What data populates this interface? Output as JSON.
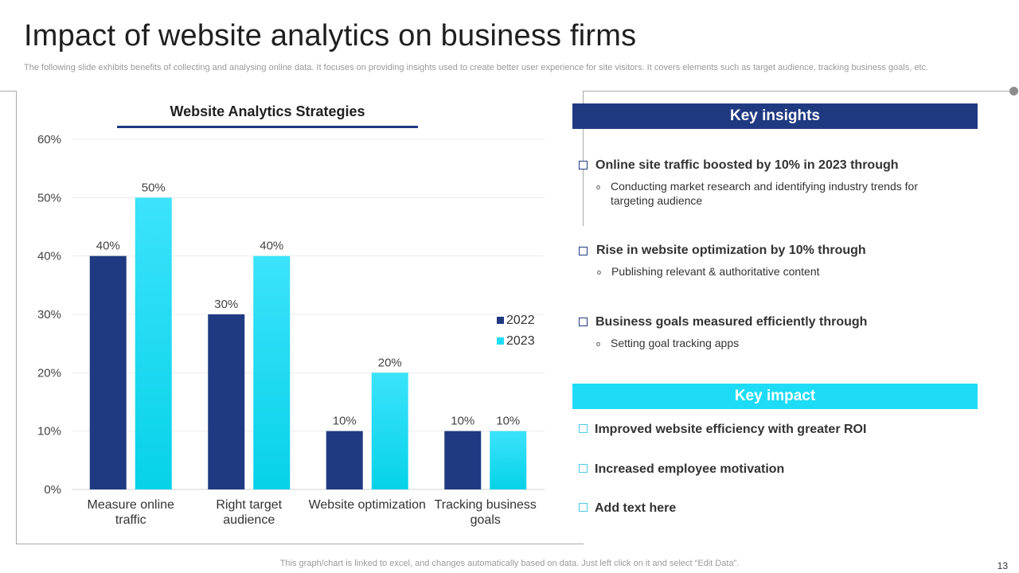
{
  "slide": {
    "title": "Impact of website analytics on business firms",
    "subtitle": "The following slide exhibits benefits of collecting and analysing online data. It focuses on providing insights used to create better user experience for site visitors. It covers elements such as target audience, tracking business goals, etc.",
    "footnote": "This graph/chart is linked to excel,  and changes automatically based on data. Just left click on it and select “Edit Data”.",
    "page_number": "13"
  },
  "chart_data": {
    "type": "bar",
    "title": "Website Analytics Strategies",
    "categories": [
      [
        "Measure online",
        "traffic"
      ],
      [
        "Right target",
        "audience"
      ],
      [
        "Website optimization"
      ],
      [
        "Tracking business",
        "goals"
      ]
    ],
    "series": [
      {
        "name": "2022",
        "values": [
          40,
          30,
          10,
          10
        ],
        "color": "#203a82"
      },
      {
        "name": "2023",
        "values": [
          50,
          40,
          20,
          10
        ],
        "color": "#1fdcf6"
      }
    ],
    "value_suffix": "%",
    "ylim": [
      0,
      60
    ],
    "yticks": [
      0,
      10,
      20,
      30,
      40,
      50,
      60
    ],
    "grid": true,
    "legend_position": "right"
  },
  "key_insights": {
    "header": "Key insights",
    "items": [
      {
        "title": "Online site traffic boosted by 10% in 2023 through",
        "bullet": "o",
        "detail_lines": [
          "Conducting market research and identifying  industry trends for",
          "targeting audience"
        ]
      },
      {
        "title": "Rise in website optimization by 10% through",
        "bullet": "o",
        "detail_lines": [
          "Publishing relevant & authoritative content"
        ]
      },
      {
        "title": "Business goals measured efficiently through",
        "bullet": "o",
        "detail_lines": [
          "Setting goal tracking apps"
        ]
      }
    ]
  },
  "key_impact": {
    "header": "Key impact",
    "items": [
      "Improved website efficiency with greater ROI",
      "Increased employee motivation",
      "Add text here"
    ]
  }
}
